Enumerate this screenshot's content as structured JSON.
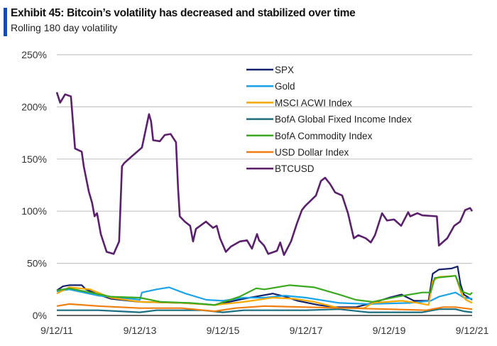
{
  "header": {
    "title": "Exhibit 45: Bitcoin’s volatility has decreased and stabilized over time",
    "subtitle": "Rolling 180 day volatility",
    "accent_color": "#0a4bd6"
  },
  "chart_data": {
    "type": "line",
    "title": "Exhibit 45: Bitcoin’s volatility has decreased and stabilized over time",
    "subtitle": "Rolling 180 day volatility",
    "xlabel": "",
    "ylabel": "",
    "x_unit": "years since 9/12/11",
    "xlim": [
      0,
      10
    ],
    "ylim": [
      0,
      250
    ],
    "x_ticks": [
      {
        "value": 0,
        "label": "9/12/11"
      },
      {
        "value": 2,
        "label": "9/12/13"
      },
      {
        "value": 4,
        "label": "9/12/15"
      },
      {
        "value": 6,
        "label": "9/12/17"
      },
      {
        "value": 8,
        "label": "9/12/19"
      },
      {
        "value": 10,
        "label": "9/12/21"
      }
    ],
    "y_ticks": [
      {
        "value": 0,
        "label": "0%"
      },
      {
        "value": 50,
        "label": "50%"
      },
      {
        "value": 100,
        "label": "100%"
      },
      {
        "value": 150,
        "label": "150%"
      },
      {
        "value": 200,
        "label": "200%"
      },
      {
        "value": 250,
        "label": "250%"
      }
    ],
    "grid": true,
    "legend_position": "top-center",
    "series": [
      {
        "name": "SPX",
        "color": "#14236b",
        "points": [
          [
            0,
            24
          ],
          [
            0.15,
            28
          ],
          [
            0.3,
            29
          ],
          [
            0.6,
            29
          ],
          [
            0.7,
            25
          ],
          [
            1.0,
            20
          ],
          [
            1.3,
            16
          ],
          [
            2.0,
            13
          ],
          [
            3.0,
            12
          ],
          [
            3.5,
            11
          ],
          [
            3.8,
            10
          ],
          [
            4.5,
            16
          ],
          [
            5.2,
            21
          ],
          [
            5.5,
            18
          ],
          [
            5.8,
            14
          ],
          [
            6.3,
            10
          ],
          [
            6.7,
            8
          ],
          [
            7.2,
            8
          ],
          [
            7.6,
            12
          ],
          [
            8.0,
            17
          ],
          [
            8.3,
            20
          ],
          [
            8.6,
            14
          ],
          [
            8.95,
            14
          ],
          [
            9.05,
            40
          ],
          [
            9.2,
            44
          ],
          [
            9.5,
            45
          ],
          [
            9.65,
            47
          ],
          [
            9.72,
            30
          ],
          [
            9.8,
            20
          ],
          [
            10,
            15
          ]
        ]
      },
      {
        "name": "Gold",
        "color": "#1aa3e8",
        "points": [
          [
            0,
            23
          ],
          [
            0.3,
            25
          ],
          [
            1.0,
            19
          ],
          [
            1.8,
            16
          ],
          [
            2.0,
            15
          ],
          [
            2.05,
            22
          ],
          [
            2.4,
            25
          ],
          [
            2.7,
            27
          ],
          [
            3.1,
            21
          ],
          [
            3.6,
            15
          ],
          [
            4.0,
            14
          ],
          [
            4.5,
            17
          ],
          [
            5.0,
            17
          ],
          [
            5.5,
            19
          ],
          [
            6.0,
            17
          ],
          [
            6.8,
            12
          ],
          [
            7.5,
            11
          ],
          [
            8.5,
            12
          ],
          [
            9.0,
            14
          ],
          [
            9.2,
            18
          ],
          [
            9.6,
            22
          ],
          [
            9.8,
            17
          ],
          [
            10,
            16
          ]
        ]
      },
      {
        "name": "MSCI ACWI Index",
        "color": "#f5a800",
        "points": [
          [
            0,
            21
          ],
          [
            0.3,
            27
          ],
          [
            0.8,
            25
          ],
          [
            1.3,
            17
          ],
          [
            2.0,
            13
          ],
          [
            3.0,
            12
          ],
          [
            3.8,
            10
          ],
          [
            4.5,
            13
          ],
          [
            5.2,
            17
          ],
          [
            5.7,
            16
          ],
          [
            6.2,
            13
          ],
          [
            6.8,
            7
          ],
          [
            7.4,
            7
          ],
          [
            7.6,
            12
          ],
          [
            8.3,
            14
          ],
          [
            8.7,
            12
          ],
          [
            8.95,
            10
          ],
          [
            9.05,
            33
          ],
          [
            9.2,
            37
          ],
          [
            9.6,
            38
          ],
          [
            9.75,
            20
          ],
          [
            9.85,
            15
          ],
          [
            10,
            12
          ]
        ]
      },
      {
        "name": "BofA Global Fixed Income Index",
        "color": "#1b6e80",
        "points": [
          [
            0,
            5
          ],
          [
            1.0,
            5
          ],
          [
            1.5,
            4
          ],
          [
            2.0,
            3
          ],
          [
            2.4,
            5
          ],
          [
            3.5,
            5
          ],
          [
            4.0,
            3
          ],
          [
            4.5,
            5
          ],
          [
            6.0,
            5
          ],
          [
            6.8,
            6
          ],
          [
            7.5,
            3
          ],
          [
            8.8,
            3
          ],
          [
            9.2,
            6
          ],
          [
            9.6,
            6
          ],
          [
            9.8,
            4
          ],
          [
            10,
            3
          ]
        ]
      },
      {
        "name": "BofA Commodity Index",
        "color": "#3aa820",
        "points": [
          [
            0,
            24
          ],
          [
            0.3,
            26
          ],
          [
            0.8,
            22
          ],
          [
            1.3,
            18
          ],
          [
            2.0,
            17
          ],
          [
            2.5,
            13
          ],
          [
            3.2,
            12
          ],
          [
            3.8,
            10
          ],
          [
            4.4,
            18
          ],
          [
            4.8,
            26
          ],
          [
            5.0,
            25
          ],
          [
            5.6,
            29
          ],
          [
            6.2,
            27
          ],
          [
            6.8,
            20
          ],
          [
            7.2,
            15
          ],
          [
            7.6,
            13
          ],
          [
            8.2,
            18
          ],
          [
            8.5,
            20
          ],
          [
            8.8,
            22
          ],
          [
            9.0,
            22
          ],
          [
            9.1,
            36
          ],
          [
            9.6,
            38
          ],
          [
            9.75,
            23
          ],
          [
            9.95,
            20
          ],
          [
            10,
            22
          ]
        ]
      },
      {
        "name": "USD Dollar Index",
        "color": "#f07d10",
        "points": [
          [
            0,
            9
          ],
          [
            0.3,
            11
          ],
          [
            1.0,
            9
          ],
          [
            2.0,
            7
          ],
          [
            3.0,
            7
          ],
          [
            3.8,
            4
          ],
          [
            4.3,
            7
          ],
          [
            5.0,
            9
          ],
          [
            6.0,
            8
          ],
          [
            7.0,
            7
          ],
          [
            8.0,
            6
          ],
          [
            8.9,
            5
          ],
          [
            9.3,
            8
          ],
          [
            9.6,
            8
          ],
          [
            10,
            6
          ]
        ]
      },
      {
        "name": "BTCUSD",
        "color": "#5b1f6e",
        "points": [
          [
            0,
            214
          ],
          [
            0.08,
            204
          ],
          [
            0.2,
            212
          ],
          [
            0.34,
            210
          ],
          [
            0.38,
            190
          ],
          [
            0.44,
            160
          ],
          [
            0.6,
            157
          ],
          [
            0.65,
            143
          ],
          [
            0.77,
            119
          ],
          [
            0.85,
            108
          ],
          [
            0.91,
            95
          ],
          [
            0.97,
            98
          ],
          [
            1.06,
            78
          ],
          [
            1.2,
            61
          ],
          [
            1.37,
            59
          ],
          [
            1.5,
            71
          ],
          [
            1.57,
            143
          ],
          [
            1.62,
            146
          ],
          [
            1.79,
            152
          ],
          [
            2.05,
            161
          ],
          [
            2.22,
            193
          ],
          [
            2.27,
            186
          ],
          [
            2.32,
            168
          ],
          [
            2.48,
            167
          ],
          [
            2.6,
            173
          ],
          [
            2.74,
            174
          ],
          [
            2.87,
            166
          ],
          [
            2.92,
            122
          ],
          [
            2.96,
            95
          ],
          [
            3.08,
            90
          ],
          [
            3.21,
            86
          ],
          [
            3.28,
            71
          ],
          [
            3.35,
            83
          ],
          [
            3.59,
            90
          ],
          [
            3.76,
            84
          ],
          [
            3.85,
            86
          ],
          [
            3.93,
            74
          ],
          [
            4.07,
            61
          ],
          [
            4.19,
            66
          ],
          [
            4.41,
            71
          ],
          [
            4.58,
            72
          ],
          [
            4.7,
            64
          ],
          [
            4.82,
            78
          ],
          [
            4.87,
            72
          ],
          [
            4.99,
            67
          ],
          [
            5.09,
            59
          ],
          [
            5.3,
            62
          ],
          [
            5.38,
            70
          ],
          [
            5.47,
            58
          ],
          [
            5.64,
            71
          ],
          [
            5.78,
            88
          ],
          [
            5.9,
            101
          ],
          [
            5.98,
            105
          ],
          [
            6.24,
            115
          ],
          [
            6.36,
            129
          ],
          [
            6.46,
            132
          ],
          [
            6.58,
            126
          ],
          [
            6.7,
            118
          ],
          [
            6.87,
            115
          ],
          [
            7.01,
            98
          ],
          [
            7.15,
            74
          ],
          [
            7.26,
            77
          ],
          [
            7.44,
            74
          ],
          [
            7.56,
            70
          ],
          [
            7.66,
            77
          ],
          [
            7.83,
            98
          ],
          [
            7.95,
            91
          ],
          [
            8.12,
            92
          ],
          [
            8.29,
            86
          ],
          [
            8.46,
            99
          ],
          [
            8.51,
            95
          ],
          [
            8.68,
            98
          ],
          [
            8.8,
            96
          ],
          [
            9.15,
            95
          ],
          [
            9.2,
            67
          ],
          [
            9.4,
            74
          ],
          [
            9.57,
            86
          ],
          [
            9.71,
            90
          ],
          [
            9.83,
            101
          ],
          [
            9.95,
            103
          ],
          [
            10,
            100
          ]
        ]
      }
    ]
  }
}
